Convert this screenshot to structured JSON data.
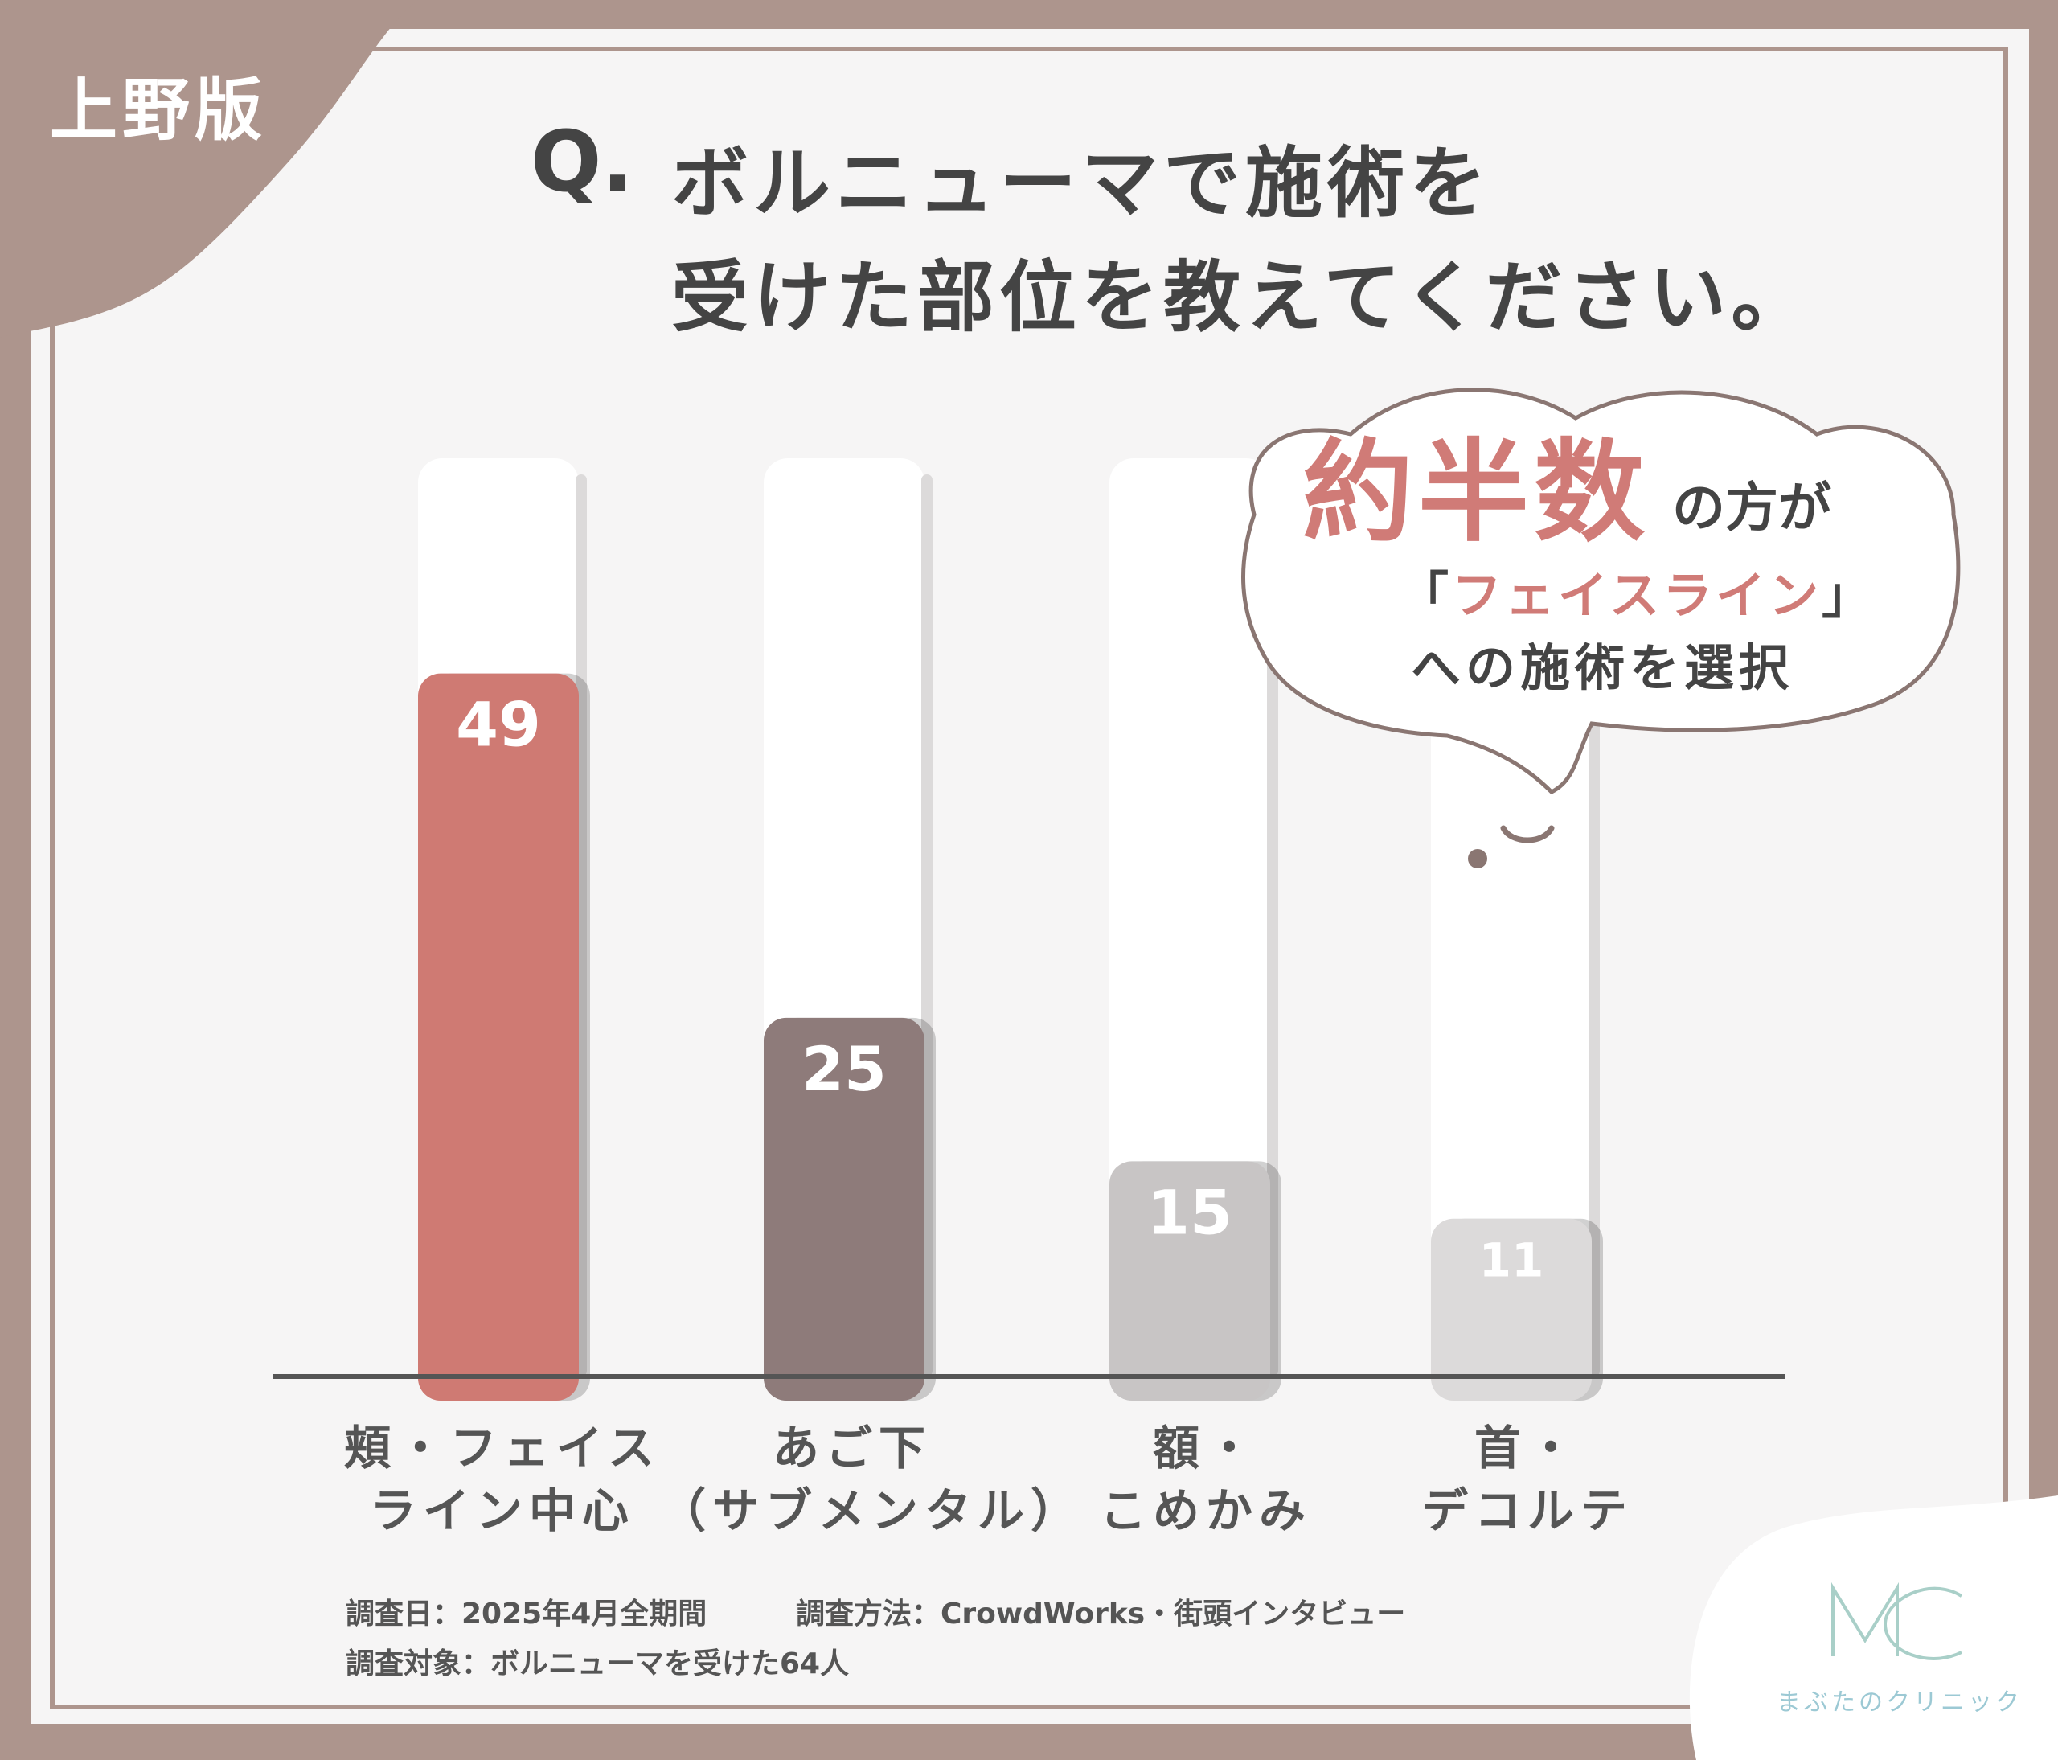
{
  "region_tag": "上野版",
  "question": {
    "mark": "Q.",
    "line1": "ボルニューマで施術を",
    "line2": "受けた部位を教えてください。"
  },
  "callout": {
    "highlight": "約半数",
    "suffix": "の方が",
    "bracket_open": "「",
    "accent": "フェイスライン",
    "bracket_close": "」",
    "line3": "への施術を選択"
  },
  "chart_data": {
    "type": "bar",
    "categories": [
      "頬・フェイスライン中心",
      "あご下（サブメンタル）",
      "額・こめかみ",
      "首・デコルテ"
    ],
    "category_lines": [
      [
        "頬・フェイス",
        "ライン中心"
      ],
      [
        "あご下",
        "（サブメンタル）"
      ],
      [
        "額・",
        "こめかみ"
      ],
      [
        "首・",
        "デコルテ"
      ]
    ],
    "values": [
      49,
      25,
      15,
      11
    ],
    "data_labels": [
      "49",
      "25",
      "15",
      "11"
    ],
    "bar_colors": [
      "#cf7a73",
      "#8e7b7a",
      "#c8c5c5",
      "#dcdada"
    ],
    "ylim": [
      0,
      64
    ],
    "title": "",
    "xlabel": "",
    "ylabel": "",
    "grid": false
  },
  "footnotes": {
    "date": "調査日：2025年4月全期間",
    "method": "調査方法：CrowdWorks・街頭インタビュー",
    "target": "調査対象：ボルニューマを受けた64人"
  },
  "logo": {
    "text": "まぶたのクリニック",
    "color": "#9cc9d4"
  }
}
